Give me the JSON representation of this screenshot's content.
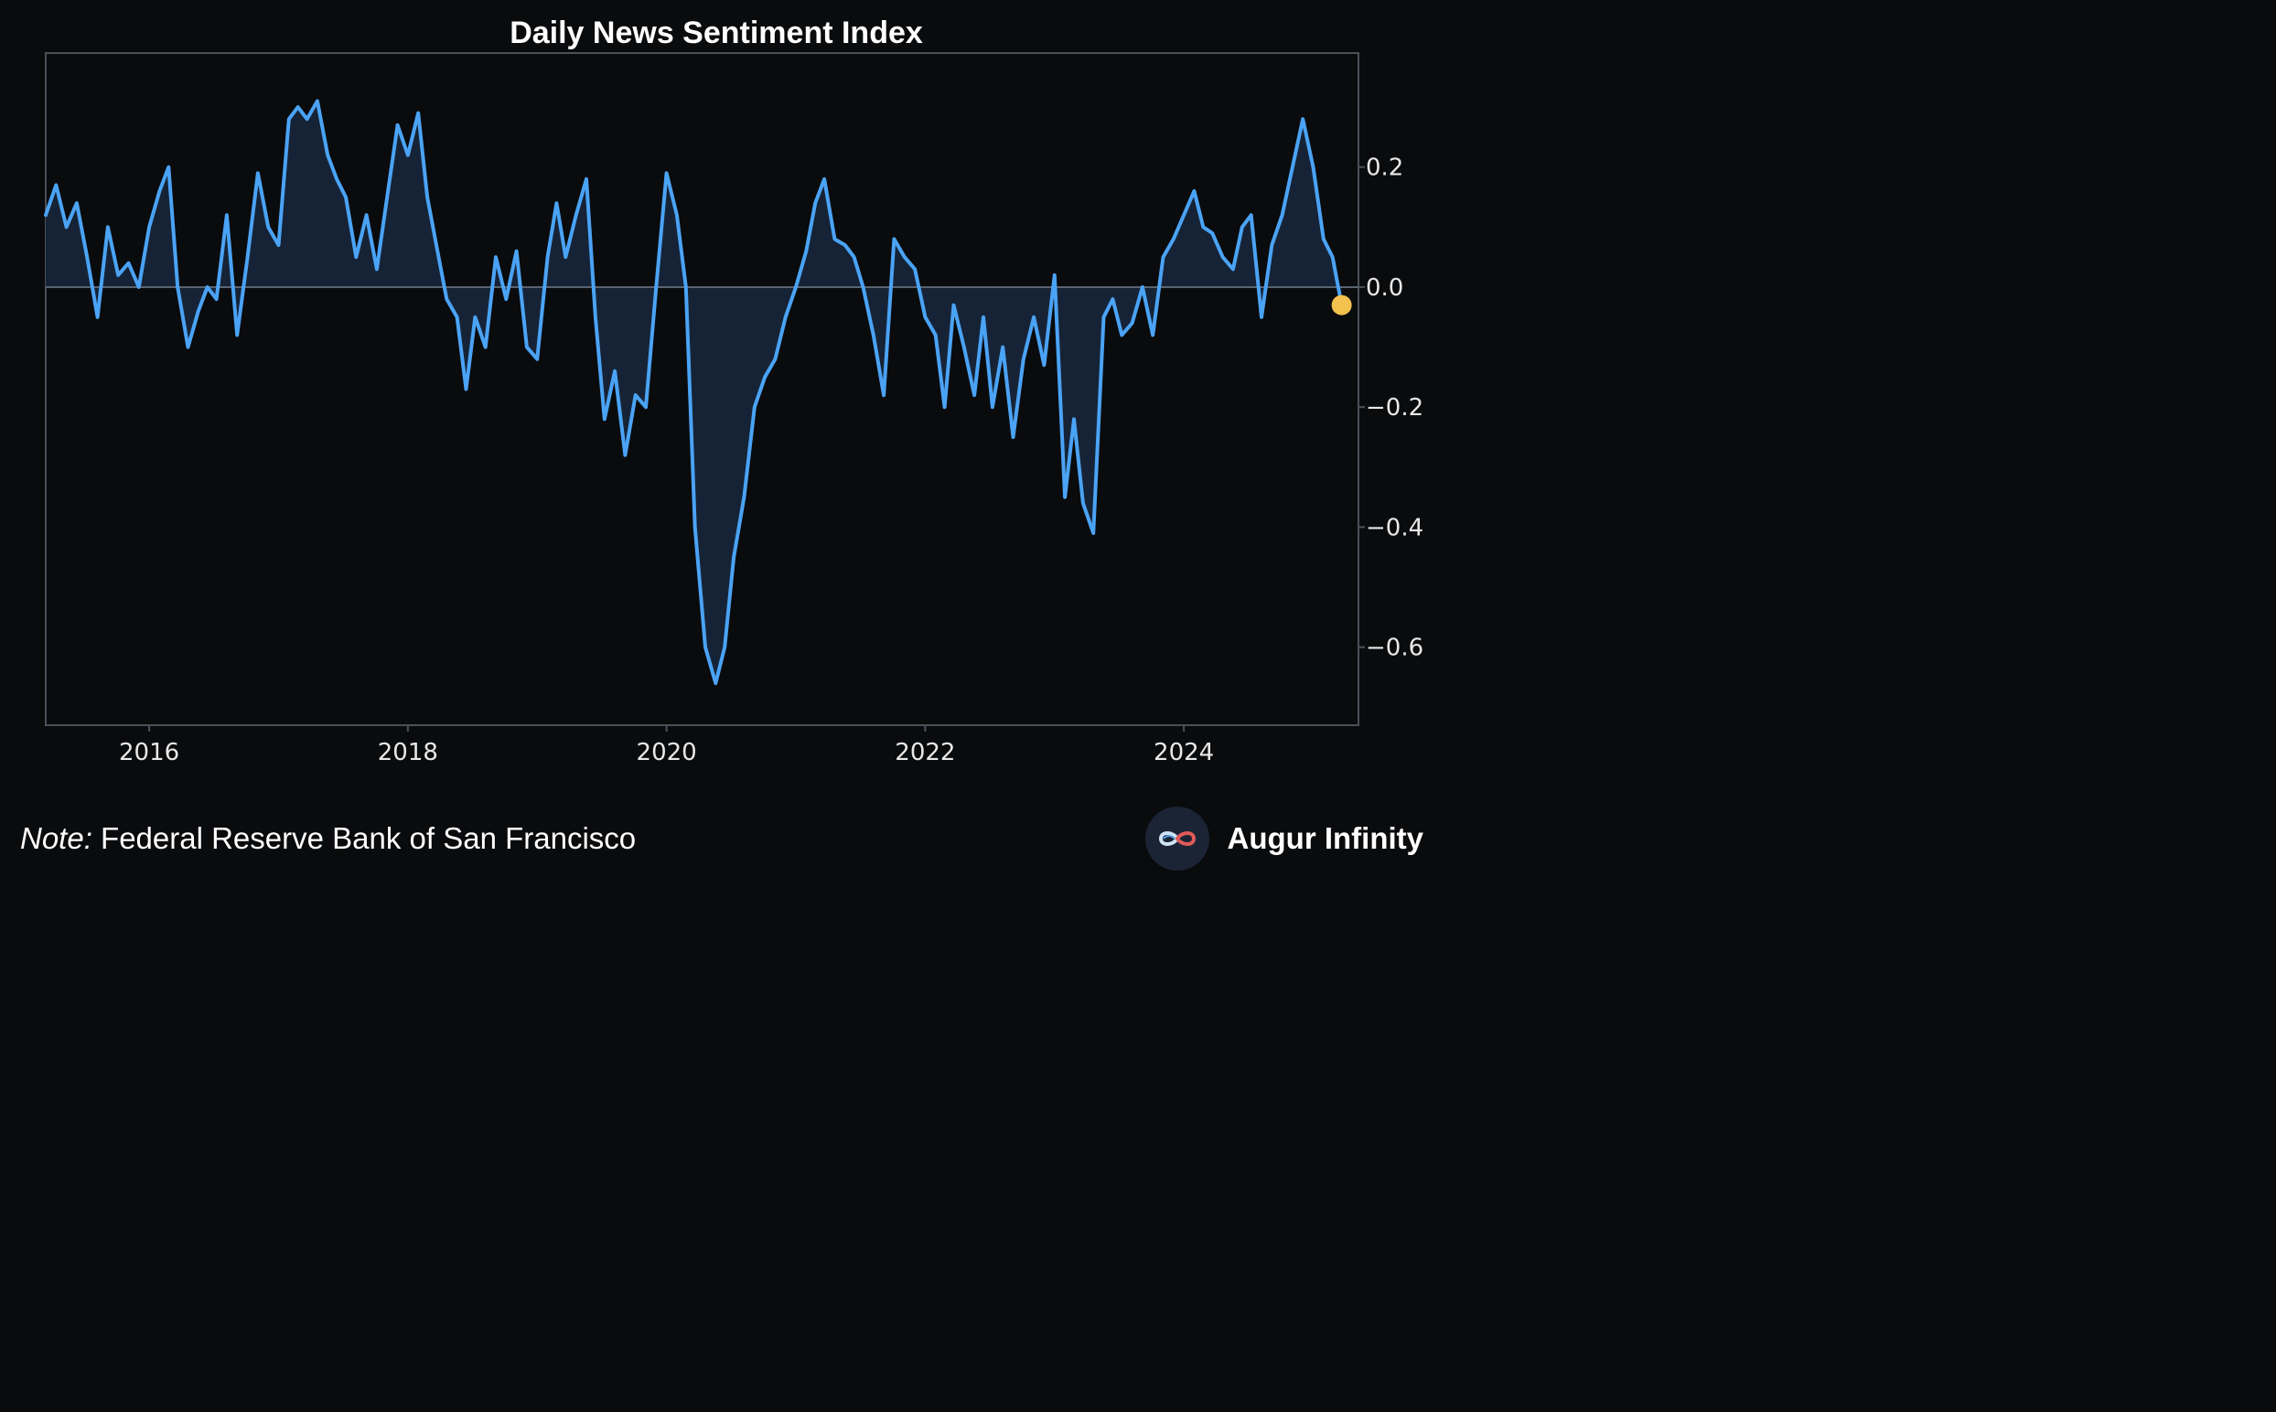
{
  "colors": {
    "background": "#0a0b0d",
    "line": "#4aa3f5",
    "fill": "#162336",
    "zero_line": "#5a6470",
    "frame": "#4a5058",
    "last_point": "#f2c14e"
  },
  "footer": {
    "note_label": "Note:",
    "note_text": " Federal Reserve Bank of San Francisco",
    "brand_name": "Augur Infinity",
    "brand_icon": "infinity-logo-icon"
  },
  "chart_data": {
    "type": "area",
    "title": "Daily News Sentiment Index",
    "xlabel": "",
    "ylabel": "",
    "xlim": [
      2015.2,
      2025.35
    ],
    "ylim": [
      -0.73,
      0.39
    ],
    "x_ticks": [
      {
        "value": 2016,
        "label": "2016"
      },
      {
        "value": 2018,
        "label": "2018"
      },
      {
        "value": 2020,
        "label": "2020"
      },
      {
        "value": 2022,
        "label": "2022"
      },
      {
        "value": 2024,
        "label": "2024"
      }
    ],
    "y_ticks": [
      {
        "value": 0.2,
        "label": "0.2"
      },
      {
        "value": 0.0,
        "label": "0.0"
      },
      {
        "value": -0.2,
        "label": "−0.2"
      },
      {
        "value": -0.4,
        "label": "−0.4"
      },
      {
        "value": -0.6,
        "label": "−0.6"
      }
    ],
    "y_axis_position": "right",
    "grid": false,
    "baseline": 0.0,
    "series": [
      {
        "x": [
          2015.2,
          2015.28,
          2015.36,
          2015.44,
          2015.52,
          2015.6,
          2015.68,
          2015.76,
          2015.84,
          2015.92,
          2016.0,
          2016.08,
          2016.15,
          2016.22,
          2016.3,
          2016.38,
          2016.45,
          2016.52,
          2016.6,
          2016.68,
          2016.76,
          2016.84,
          2016.92,
          2017.0,
          2017.08,
          2017.15,
          2017.22,
          2017.3,
          2017.38,
          2017.45,
          2017.52,
          2017.6,
          2017.68,
          2017.76,
          2017.84,
          2017.92,
          2018.0,
          2018.08,
          2018.15,
          2018.22,
          2018.3,
          2018.38,
          2018.45,
          2018.52,
          2018.6,
          2018.68,
          2018.76,
          2018.84,
          2018.92,
          2019.0,
          2019.08,
          2019.15,
          2019.22,
          2019.3,
          2019.38,
          2019.45,
          2019.52,
          2019.6,
          2019.68,
          2019.76,
          2019.84,
          2019.92,
          2020.0,
          2020.08,
          2020.15,
          2020.22,
          2020.3,
          2020.38,
          2020.45,
          2020.52,
          2020.6,
          2020.68,
          2020.76,
          2020.84,
          2020.92,
          2021.0,
          2021.08,
          2021.15,
          2021.22,
          2021.3,
          2021.38,
          2021.45,
          2021.52,
          2021.6,
          2021.68,
          2021.76,
          2021.84,
          2021.92,
          2022.0,
          2022.08,
          2022.15,
          2022.22,
          2022.3,
          2022.38,
          2022.45,
          2022.52,
          2022.6,
          2022.68,
          2022.76,
          2022.84,
          2022.92,
          2023.0,
          2023.08,
          2023.15,
          2023.22,
          2023.3,
          2023.38,
          2023.45,
          2023.52,
          2023.6,
          2023.68,
          2023.76,
          2023.84,
          2023.92,
          2024.0,
          2024.08,
          2024.15,
          2024.22,
          2024.3,
          2024.38,
          2024.45,
          2024.52,
          2024.6,
          2024.68,
          2024.76,
          2024.84,
          2024.92,
          2025.0,
          2025.08,
          2025.15,
          2025.22
        ],
        "y": [
          0.12,
          0.17,
          0.1,
          0.14,
          0.05,
          -0.05,
          0.1,
          0.02,
          0.04,
          0.0,
          0.1,
          0.16,
          0.2,
          0.0,
          -0.1,
          -0.04,
          0.0,
          -0.02,
          0.12,
          -0.08,
          0.05,
          0.19,
          0.1,
          0.07,
          0.28,
          0.3,
          0.28,
          0.31,
          0.22,
          0.18,
          0.15,
          0.05,
          0.12,
          0.03,
          0.15,
          0.27,
          0.22,
          0.29,
          0.15,
          0.07,
          -0.02,
          -0.05,
          -0.17,
          -0.05,
          -0.1,
          0.05,
          -0.02,
          0.06,
          -0.1,
          -0.12,
          0.05,
          0.14,
          0.05,
          0.12,
          0.18,
          -0.05,
          -0.22,
          -0.14,
          -0.28,
          -0.18,
          -0.2,
          0.0,
          0.19,
          0.12,
          0.0,
          -0.4,
          -0.6,
          -0.66,
          -0.6,
          -0.45,
          -0.35,
          -0.2,
          -0.15,
          -0.12,
          -0.05,
          0.0,
          0.06,
          0.14,
          0.18,
          0.08,
          0.07,
          0.05,
          0.0,
          -0.08,
          -0.18,
          0.08,
          0.05,
          0.03,
          -0.05,
          -0.08,
          -0.2,
          -0.03,
          -0.1,
          -0.18,
          -0.05,
          -0.2,
          -0.1,
          -0.25,
          -0.12,
          -0.05,
          -0.13,
          0.02,
          -0.35,
          -0.22,
          -0.36,
          -0.41,
          -0.05,
          -0.02,
          -0.08,
          -0.06,
          0.0,
          -0.08,
          0.05,
          0.08,
          0.12,
          0.16,
          0.1,
          0.09,
          0.05,
          0.03,
          0.1,
          0.12,
          -0.05,
          0.07,
          0.12,
          0.2,
          0.28,
          0.2,
          0.08,
          0.05,
          -0.03
        ]
      }
    ],
    "last_point_marker": {
      "x": 2025.22,
      "y": -0.03
    }
  }
}
